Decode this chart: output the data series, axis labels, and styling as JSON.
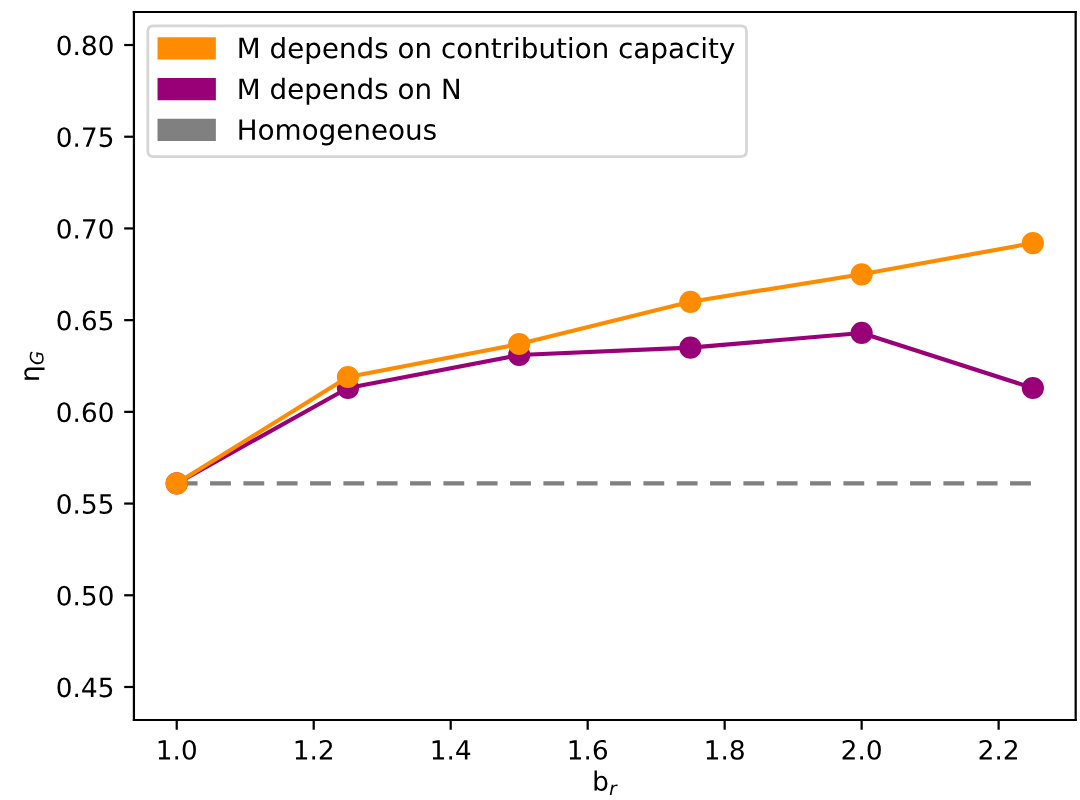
{
  "chart_data": {
    "type": "line",
    "xlabel": "b$_{r}$",
    "ylabel": "η$_{G}$",
    "x": [
      1.0,
      1.25,
      1.5,
      1.75,
      2.0,
      2.25
    ],
    "series": [
      {
        "name": "M depends on contribution capacity",
        "color": "#ff8c00",
        "values": [
          0.561,
          0.619,
          0.637,
          0.66,
          0.675,
          0.692
        ],
        "marker": "circle"
      },
      {
        "name": "M depends on N",
        "color": "#990077",
        "values": [
          0.561,
          0.613,
          0.631,
          0.635,
          0.643,
          0.613
        ],
        "marker": "circle"
      },
      {
        "name": "Homogeneous",
        "color": "#808080",
        "values": [
          0.561,
          0.561,
          0.561,
          0.561,
          0.561,
          0.561
        ],
        "marker": "none",
        "line_style": "dashed"
      }
    ],
    "xlim": [
      0.9375,
      2.3125
    ],
    "xticks": [
      {
        "value": 1,
        "label": "1.0"
      },
      1.2,
      1.4,
      1.6,
      1.8,
      {
        "value": 2,
        "label": "2.0"
      },
      2.2
    ],
    "ylim": [
      0.432,
      0.818
    ],
    "yticks": [
      0.45,
      {
        "value": 0.5,
        "label": "0.50"
      },
      0.55,
      {
        "value": 0.6,
        "label": "0.60"
      },
      0.65,
      {
        "value": 0.7,
        "label": "0.70"
      },
      0.75,
      {
        "value": 0.8,
        "label": "0.80"
      }
    ],
    "grid": false,
    "legend": "top left"
  }
}
